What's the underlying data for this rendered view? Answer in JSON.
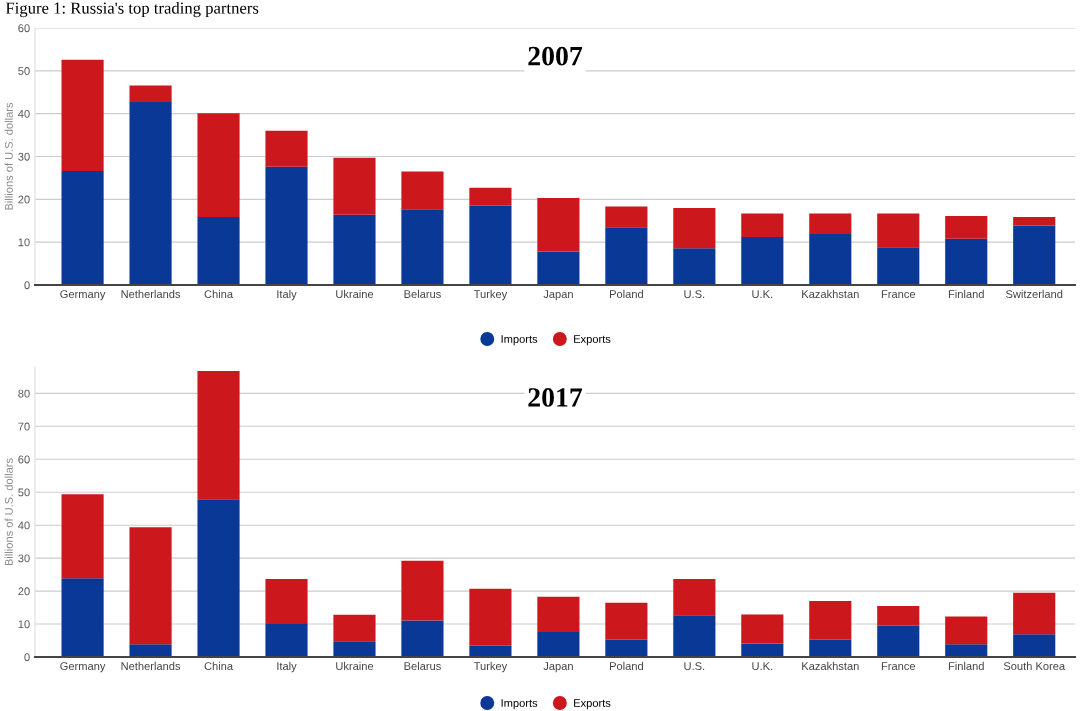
{
  "chart_data": [
    {
      "type": "bar",
      "stacked": true,
      "title": "2007",
      "annotations": [
        "Figure 1: Russia's top trading partners"
      ],
      "ylabel": "Billions of U.S. dollars",
      "categories": [
        "Germany",
        "Netherlands",
        "China",
        "Italy",
        "Ukraine",
        "Belarus",
        "Turkey",
        "Japan",
        "Poland",
        "U.S.",
        "U.K.",
        "Kazakhstan",
        "France",
        "Finland",
        "Switzerland"
      ],
      "series": [
        {
          "name": "Imports",
          "color": "#0a3896",
          "values": [
            26.6,
            42.7,
            15.9,
            27.6,
            16.4,
            17.7,
            18.5,
            7.8,
            13.5,
            8.6,
            11.2,
            11.9,
            8.8,
            10.8,
            13.9
          ]
        },
        {
          "name": "Exports",
          "color": "#cc171c",
          "values": [
            26.0,
            3.9,
            24.2,
            8.4,
            13.3,
            8.8,
            4.2,
            12.5,
            4.8,
            9.4,
            5.5,
            4.8,
            7.9,
            5.3,
            2.0
          ]
        }
      ],
      "ylim": [
        0,
        60
      ],
      "yticks": [
        0,
        10,
        20,
        30,
        40,
        50,
        60
      ],
      "grid": "y",
      "legend": "bottom"
    },
    {
      "type": "bar",
      "stacked": true,
      "title": "2017",
      "ylabel": "Billions of U.S. dollars",
      "categories": [
        "Germany",
        "Netherlands",
        "China",
        "Italy",
        "Ukraine",
        "Belarus",
        "Turkey",
        "Japan",
        "Poland",
        "U.S.",
        "U.K.",
        "Kazakhstan",
        "France",
        "Finland",
        "South Korea"
      ],
      "series": [
        {
          "name": "Imports",
          "color": "#0a3896",
          "values": [
            23.9,
            3.9,
            47.9,
            10.0,
            4.8,
            11.1,
            3.4,
            7.6,
            5.2,
            12.7,
            4.1,
            5.2,
            9.5,
            3.9,
            6.9
          ]
        },
        {
          "name": "Exports",
          "color": "#cc171c",
          "values": [
            25.5,
            35.5,
            38.9,
            13.7,
            8.0,
            18.1,
            17.3,
            10.7,
            11.3,
            11.0,
            8.8,
            11.8,
            6.0,
            8.4,
            12.6
          ]
        }
      ],
      "ylim": [
        0,
        88
      ],
      "yticks": [
        0,
        10,
        20,
        30,
        40,
        50,
        60,
        70,
        80
      ],
      "grid": "y",
      "legend": "bottom"
    }
  ]
}
